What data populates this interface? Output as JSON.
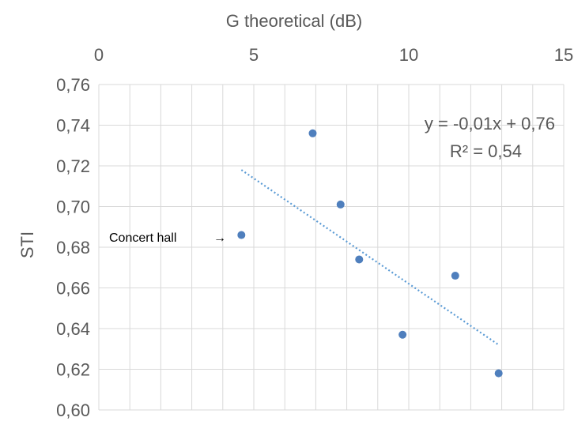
{
  "chart_data": {
    "type": "scatter",
    "title": "",
    "xlabel": "G theoretical (dB)",
    "ylabel": "STI",
    "xlim": [
      0,
      15
    ],
    "ylim": [
      0.6,
      0.76
    ],
    "x_axis_position": "top",
    "x_ticks": [
      "0",
      "5",
      "10",
      "15"
    ],
    "y_ticks": [
      "0,60",
      "0,62",
      "0,64",
      "0,66",
      "0,68",
      "0,70",
      "0,72",
      "0,74",
      "0,76"
    ],
    "grid": true,
    "series": [
      {
        "points": [
          {
            "x": 4.6,
            "y": 0.686
          },
          {
            "x": 6.9,
            "y": 0.736
          },
          {
            "x": 7.8,
            "y": 0.701
          },
          {
            "x": 8.4,
            "y": 0.674
          },
          {
            "x": 9.8,
            "y": 0.637
          },
          {
            "x": 11.5,
            "y": 0.666
          },
          {
            "x": 12.9,
            "y": 0.618
          }
        ]
      }
    ],
    "trendline": {
      "type": "linear",
      "x_range": [
        4.6,
        12.9
      ],
      "y_range": [
        0.718,
        0.632
      ],
      "equation": "y = -0,01x + 0,76",
      "r2": "R² = 0,54"
    },
    "annotation": {
      "text": "Concert hall",
      "arrow": "→",
      "target_x": 4.6,
      "target_y": 0.686
    },
    "colors": {
      "points": "#4f7fbd",
      "trendline": "#5b9bd5",
      "grid": "#d9d9d9",
      "text": "#595959"
    }
  }
}
